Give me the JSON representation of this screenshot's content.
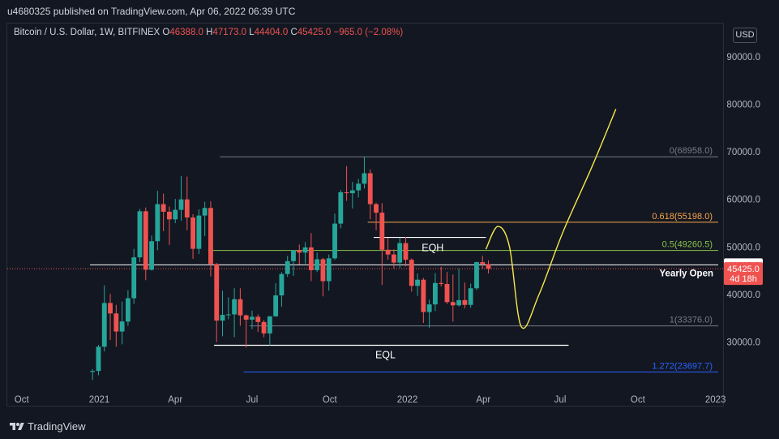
{
  "header": {
    "published_by": "u4680325 published on TradingView.com, Apr 06, 2022 06:39 UTC"
  },
  "legend": {
    "symbol": "Bitcoin / U.S. Dollar, 1W, BITFINEX",
    "open_label": "O",
    "open_value": "46388.0",
    "high_label": "H",
    "high_value": "47173.0",
    "low_label": "L",
    "low_value": "44404.0",
    "close_label": "C",
    "close_value": "45425.0",
    "change": "−965.0 (−2.08%)"
  },
  "currency_button": "USD",
  "footer": {
    "brand": "TradingView",
    "logo_icon": "tradingview-logo-icon"
  },
  "chart_data": {
    "type": "candlestick",
    "title": "Bitcoin / U.S. Dollar, 1W, BITFINEX",
    "y_axis": {
      "ticks": [
        "90000.0",
        "80000.0",
        "70000.0",
        "60000.0",
        "50000.0",
        "40000.0",
        "30000.0"
      ],
      "ylim": [
        20000,
        97000
      ],
      "position": "right"
    },
    "x_axis": {
      "ticks": [
        "Oct",
        "2021",
        "Apr",
        "Jul",
        "Oct",
        "2022",
        "Apr",
        "Jul",
        "Oct",
        "2023"
      ]
    },
    "x_tick_dates": [
      "2020-10-01",
      "2021-01-01",
      "2021-04-01",
      "2021-07-01",
      "2021-10-01",
      "2022-01-01",
      "2022-04-01",
      "2022-07-01",
      "2022-10-01",
      "2023-01-01"
    ],
    "x_range": [
      "2020-09-14",
      "2023-01-10"
    ],
    "candles": [
      {
        "date": "2020-12-21",
        "o": 23700,
        "h": 24300,
        "l": 22000,
        "c": 23900
      },
      {
        "date": "2020-12-28",
        "o": 23900,
        "h": 29400,
        "l": 23000,
        "c": 29000
      },
      {
        "date": "2021-01-04",
        "o": 29000,
        "h": 41900,
        "l": 28000,
        "c": 38200
      },
      {
        "date": "2021-01-11",
        "o": 38200,
        "h": 40100,
        "l": 30400,
        "c": 36000
      },
      {
        "date": "2021-01-18",
        "o": 36000,
        "h": 37800,
        "l": 29000,
        "c": 32200
      },
      {
        "date": "2021-01-25",
        "o": 32200,
        "h": 38500,
        "l": 29500,
        "c": 34300
      },
      {
        "date": "2021-02-01",
        "o": 34300,
        "h": 40900,
        "l": 33400,
        "c": 39200
      },
      {
        "date": "2021-02-08",
        "o": 39200,
        "h": 49600,
        "l": 38000,
        "c": 47800
      },
      {
        "date": "2021-02-15",
        "o": 47800,
        "h": 58000,
        "l": 46800,
        "c": 57500
      },
      {
        "date": "2021-02-22",
        "o": 57500,
        "h": 58300,
        "l": 43000,
        "c": 45200
      },
      {
        "date": "2021-03-01",
        "o": 45200,
        "h": 52400,
        "l": 45000,
        "c": 51200
      },
      {
        "date": "2021-03-08",
        "o": 51200,
        "h": 61800,
        "l": 49300,
        "c": 59000
      },
      {
        "date": "2021-03-15",
        "o": 59000,
        "h": 61200,
        "l": 53300,
        "c": 57400
      },
      {
        "date": "2021-03-22",
        "o": 57400,
        "h": 58500,
        "l": 50400,
        "c": 55800
      },
      {
        "date": "2021-03-29",
        "o": 55800,
        "h": 60100,
        "l": 55000,
        "c": 57800
      },
      {
        "date": "2021-04-05",
        "o": 57800,
        "h": 64900,
        "l": 55500,
        "c": 60000
      },
      {
        "date": "2021-04-12",
        "o": 60000,
        "h": 64800,
        "l": 53500,
        "c": 56200
      },
      {
        "date": "2021-04-19",
        "o": 56200,
        "h": 56900,
        "l": 47500,
        "c": 49600
      },
      {
        "date": "2021-04-26",
        "o": 49600,
        "h": 57900,
        "l": 48500,
        "c": 56600
      },
      {
        "date": "2021-05-03",
        "o": 56600,
        "h": 59500,
        "l": 52300,
        "c": 58200
      },
      {
        "date": "2021-05-10",
        "o": 58200,
        "h": 59600,
        "l": 43800,
        "c": 46400
      },
      {
        "date": "2021-05-17",
        "o": 46400,
        "h": 46600,
        "l": 30000,
        "c": 34500
      },
      {
        "date": "2021-05-24",
        "o": 34500,
        "h": 40800,
        "l": 31200,
        "c": 35700
      },
      {
        "date": "2021-05-31",
        "o": 35700,
        "h": 39400,
        "l": 34800,
        "c": 35800
      },
      {
        "date": "2021-06-07",
        "o": 35800,
        "h": 41300,
        "l": 31000,
        "c": 39000
      },
      {
        "date": "2021-06-14",
        "o": 39000,
        "h": 41300,
        "l": 33400,
        "c": 35600
      },
      {
        "date": "2021-06-21",
        "o": 35600,
        "h": 35800,
        "l": 28800,
        "c": 34700
      },
      {
        "date": "2021-06-28",
        "o": 34700,
        "h": 36600,
        "l": 32700,
        "c": 35300
      },
      {
        "date": "2021-07-05",
        "o": 35300,
        "h": 35800,
        "l": 32100,
        "c": 34200
      },
      {
        "date": "2021-07-12",
        "o": 34200,
        "h": 34600,
        "l": 31000,
        "c": 31800
      },
      {
        "date": "2021-07-19",
        "o": 31800,
        "h": 35400,
        "l": 29300,
        "c": 35400
      },
      {
        "date": "2021-07-26",
        "o": 35400,
        "h": 42400,
        "l": 35300,
        "c": 39800
      },
      {
        "date": "2021-08-02",
        "o": 39800,
        "h": 44700,
        "l": 37400,
        "c": 44300
      },
      {
        "date": "2021-08-09",
        "o": 44300,
        "h": 48100,
        "l": 43700,
        "c": 47000
      },
      {
        "date": "2021-08-16",
        "o": 47000,
        "h": 49300,
        "l": 43900,
        "c": 49300
      },
      {
        "date": "2021-08-23",
        "o": 49300,
        "h": 50500,
        "l": 46300,
        "c": 48800
      },
      {
        "date": "2021-08-30",
        "o": 48800,
        "h": 51000,
        "l": 46500,
        "c": 49900
      },
      {
        "date": "2021-09-06",
        "o": 49900,
        "h": 52900,
        "l": 42800,
        "c": 45100
      },
      {
        "date": "2021-09-13",
        "o": 45100,
        "h": 48800,
        "l": 44700,
        "c": 47400
      },
      {
        "date": "2021-09-20",
        "o": 47400,
        "h": 47700,
        "l": 39600,
        "c": 42800
      },
      {
        "date": "2021-09-27",
        "o": 42800,
        "h": 48400,
        "l": 40800,
        "c": 47600
      },
      {
        "date": "2021-10-04",
        "o": 47600,
        "h": 57000,
        "l": 47300,
        "c": 54900
      },
      {
        "date": "2021-10-11",
        "o": 54900,
        "h": 62000,
        "l": 53900,
        "c": 61500
      },
      {
        "date": "2021-10-18",
        "o": 61500,
        "h": 67000,
        "l": 59700,
        "c": 61300
      },
      {
        "date": "2021-10-25",
        "o": 61300,
        "h": 63700,
        "l": 58100,
        "c": 61900
      },
      {
        "date": "2021-11-01",
        "o": 61900,
        "h": 64300,
        "l": 60400,
        "c": 63300
      },
      {
        "date": "2021-11-08",
        "o": 63300,
        "h": 69000,
        "l": 62300,
        "c": 65500
      },
      {
        "date": "2021-11-15",
        "o": 65500,
        "h": 66300,
        "l": 55800,
        "c": 59000
      },
      {
        "date": "2021-11-22",
        "o": 59000,
        "h": 59300,
        "l": 53500,
        "c": 57200
      },
      {
        "date": "2021-11-29",
        "o": 57200,
        "h": 59200,
        "l": 42000,
        "c": 49400
      },
      {
        "date": "2021-12-06",
        "o": 49400,
        "h": 51900,
        "l": 47300,
        "c": 48400
      },
      {
        "date": "2021-12-13",
        "o": 48400,
        "h": 49500,
        "l": 45500,
        "c": 46700
      },
      {
        "date": "2021-12-20",
        "o": 46700,
        "h": 51900,
        "l": 45600,
        "c": 50800
      },
      {
        "date": "2021-12-27",
        "o": 50800,
        "h": 52100,
        "l": 45900,
        "c": 47300
      },
      {
        "date": "2022-01-03",
        "o": 47300,
        "h": 47600,
        "l": 40600,
        "c": 41800
      },
      {
        "date": "2022-01-10",
        "o": 41800,
        "h": 44400,
        "l": 39700,
        "c": 43100
      },
      {
        "date": "2022-01-17",
        "o": 43100,
        "h": 43500,
        "l": 34000,
        "c": 36300
      },
      {
        "date": "2022-01-24",
        "o": 36300,
        "h": 38900,
        "l": 33000,
        "c": 37900
      },
      {
        "date": "2022-01-31",
        "o": 37900,
        "h": 44500,
        "l": 36500,
        "c": 42400
      },
      {
        "date": "2022-02-07",
        "o": 42400,
        "h": 45800,
        "l": 41700,
        "c": 42200
      },
      {
        "date": "2022-02-14",
        "o": 42200,
        "h": 44700,
        "l": 38000,
        "c": 38400
      },
      {
        "date": "2022-02-21",
        "o": 38400,
        "h": 44200,
        "l": 34300,
        "c": 37700
      },
      {
        "date": "2022-02-28",
        "o": 37700,
        "h": 45400,
        "l": 37500,
        "c": 38800
      },
      {
        "date": "2022-03-07",
        "o": 38800,
        "h": 42500,
        "l": 37100,
        "c": 37800
      },
      {
        "date": "2022-03-14",
        "o": 37800,
        "h": 42300,
        "l": 37200,
        "c": 41300
      },
      {
        "date": "2022-03-21",
        "o": 41300,
        "h": 46900,
        "l": 40900,
        "c": 46800
      },
      {
        "date": "2022-03-28",
        "o": 46800,
        "h": 48100,
        "l": 45400,
        "c": 46400
      },
      {
        "date": "2022-04-04",
        "o": 46388,
        "h": 47173,
        "l": 44404,
        "c": 45425
      }
    ],
    "fib_levels": [
      {
        "ratio": "0",
        "price": 68958.0,
        "label": "0(68958.0)"
      },
      {
        "ratio": "0.618",
        "price": 55198.0,
        "label": "0.618(55198.0)"
      },
      {
        "ratio": "0.5",
        "price": 49260.5,
        "label": "0.5(49260.5)"
      },
      {
        "ratio": "1",
        "price": 33376.0,
        "label": "1(33376.0)"
      },
      {
        "ratio": "1.272",
        "price": 23697.7,
        "label": "1.272(23697.7)"
      }
    ],
    "annotations": [
      {
        "text": "EQH",
        "price": 52000
      },
      {
        "text": "EQL",
        "price": 29300
      },
      {
        "text": "Yearly Open",
        "price": 46218
      }
    ],
    "price_labels": [
      {
        "text": "46218.0",
        "price": 46218
      },
      {
        "text": "45425.0",
        "price": 45425,
        "sub": "4d 18h"
      }
    ],
    "projection": [
      {
        "date": "2022-04-04",
        "price": 49500
      },
      {
        "date": "2022-04-18",
        "price": 54300
      },
      {
        "date": "2022-05-02",
        "price": 50000
      },
      {
        "date": "2022-05-16",
        "price": 33200
      },
      {
        "date": "2022-06-06",
        "price": 40000
      },
      {
        "date": "2022-07-04",
        "price": 53000
      },
      {
        "date": "2022-08-08",
        "price": 67000
      },
      {
        "date": "2022-09-05",
        "price": 79000
      }
    ],
    "colors": {
      "up": "#26a69a",
      "down": "#ef5350",
      "fib_0": "#787b86",
      "fib_0618": "#f7a64a",
      "fib_05": "#8bc34a",
      "fib_1": "#787b86",
      "fib_1272": "#2962ff",
      "projection": "#f5e94a",
      "white_line": "#ffffff",
      "price_line": "#ef5350"
    }
  }
}
